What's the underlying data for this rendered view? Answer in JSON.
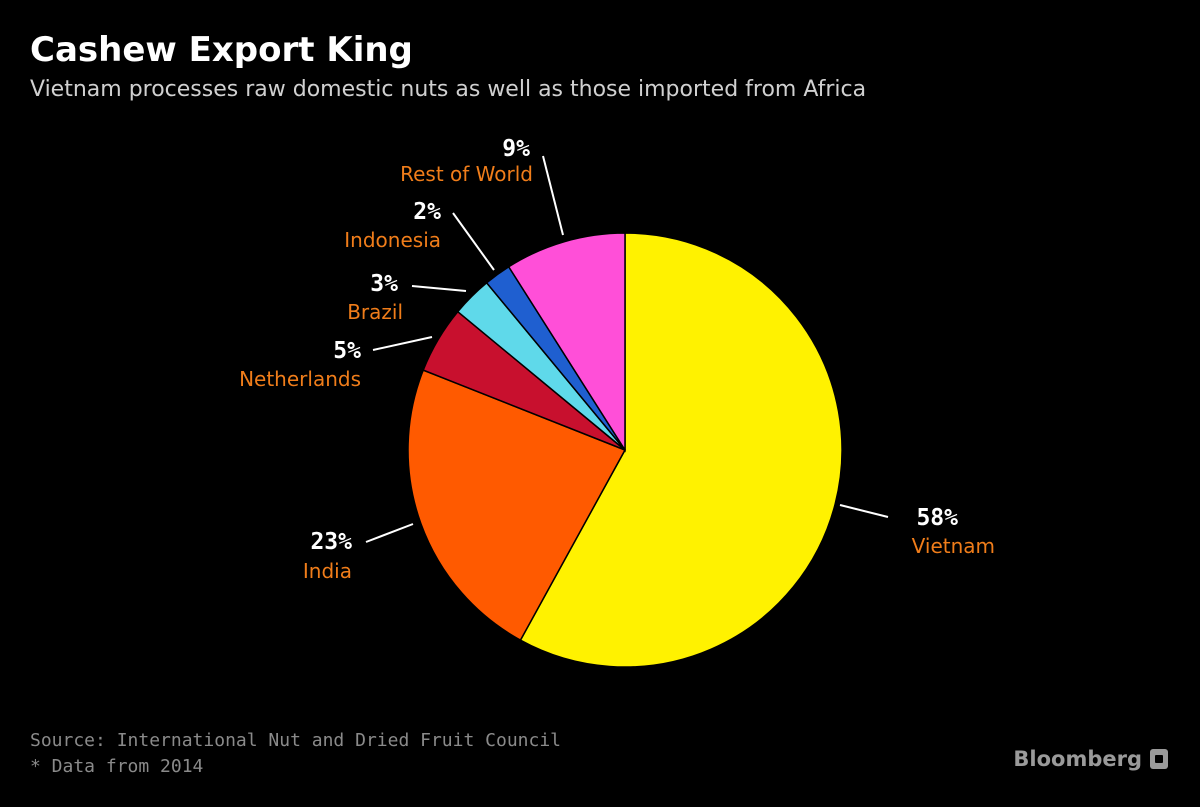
{
  "chart_data": {
    "type": "pie",
    "title": "Cashew Export King",
    "subtitle": "Vietnam processes raw domestic nuts as well as those imported from Africa",
    "slices": [
      {
        "label": "Vietnam",
        "value": 58,
        "value_label": "58%",
        "color": "#fff200"
      },
      {
        "label": "India",
        "value": 23,
        "value_label": "23%",
        "color": "#ff5a00"
      },
      {
        "label": "Netherlands",
        "value": 5,
        "value_label": "5%",
        "color": "#c8102e"
      },
      {
        "label": "Brazil",
        "value": 3,
        "value_label": "3%",
        "color": "#5fd9ea"
      },
      {
        "label": "Indonesia",
        "value": 2,
        "value_label": "2%",
        "color": "#1f5fd0"
      },
      {
        "label": "Rest of World",
        "value": 9,
        "value_label": "9%",
        "color": "#ff4fd8"
      }
    ],
    "label_color": "#f07d1a",
    "value_color": "#ffffff"
  },
  "footer": {
    "source": "Source: International Nut and Dried Fruit Council",
    "note": "* Data from 2014",
    "brand": "Bloomberg"
  }
}
